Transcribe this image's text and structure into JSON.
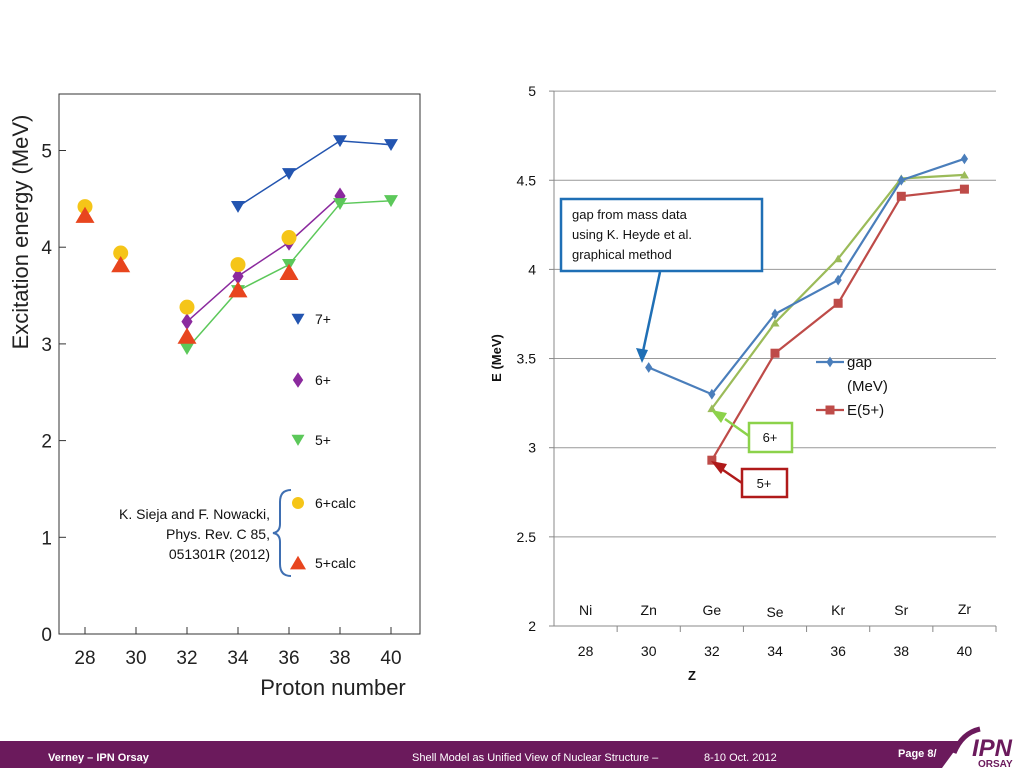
{
  "chart_data": [
    {
      "type": "scatter",
      "title": "",
      "xlabel": "Proton number",
      "ylabel": "Excitation energy (MeV)",
      "xlim": [
        27,
        41
      ],
      "ylim": [
        0,
        5.6
      ],
      "xticks": [
        "28",
        "30",
        "32",
        "34",
        "36",
        "38",
        "40"
      ],
      "yticks": [
        "0",
        "1",
        "2",
        "3",
        "4",
        "5"
      ],
      "grid": false,
      "legend": "right",
      "series": [
        {
          "name": "7+",
          "marker": "triangle-down",
          "color": "#2355b0",
          "lines": true,
          "x": [
            34,
            36,
            38,
            40
          ],
          "y": [
            4.42,
            4.76,
            5.1,
            5.06
          ]
        },
        {
          "name": "6+",
          "marker": "diamond",
          "color": "#8b2a9e",
          "lines": true,
          "x": [
            32,
            34,
            36,
            38
          ],
          "y": [
            3.23,
            3.7,
            4.05,
            4.53
          ]
        },
        {
          "name": "5+",
          "marker": "triangle-down",
          "color": "#5cc85a",
          "lines": true,
          "x": [
            32,
            34,
            36,
            38,
            40
          ],
          "y": [
            2.95,
            3.55,
            3.82,
            4.45,
            4.48
          ]
        },
        {
          "name": "6+calc",
          "marker": "circle",
          "color": "#f5c518",
          "lines": false,
          "x": [
            28,
            29.4,
            32,
            34,
            36
          ],
          "y": [
            4.42,
            3.94,
            3.38,
            3.82,
            4.1
          ]
        },
        {
          "name": "5+calc",
          "marker": "triangle-up",
          "color": "#e8451e",
          "lines": false,
          "x": [
            28,
            29.4,
            32,
            34,
            36
          ],
          "y": [
            4.33,
            3.82,
            3.08,
            3.56,
            3.74
          ]
        }
      ],
      "annotations": [
        "K. Sieja and F. Nowacki,",
        "Phys. Rev. C 85,",
        "051301R (2012)"
      ]
    },
    {
      "type": "line",
      "title": "",
      "xlabel": "Z",
      "ylabel": "E (MeV)",
      "categories": [
        "28",
        "30",
        "32",
        "34",
        "36",
        "38",
        "40"
      ],
      "element_labels": [
        "Ni",
        "Zn",
        "Ge",
        "Se",
        "Kr",
        "Sr",
        "Zr"
      ],
      "ylim": [
        2,
        5
      ],
      "yticks": [
        "2",
        "2.5",
        "3",
        "3.5",
        "4",
        "4.5",
        "5"
      ],
      "grid": true,
      "legend": "right",
      "series": [
        {
          "name": "gap (MeV)",
          "legend_lines": [
            "gap",
            "(MeV)"
          ],
          "marker": "diamond",
          "color": "#4a7ebb",
          "values": [
            null,
            3.45,
            3.3,
            3.75,
            3.94,
            4.5,
            4.62
          ]
        },
        {
          "name": "E(5+)",
          "marker": "square",
          "color": "#be4b48",
          "values": [
            null,
            null,
            2.93,
            3.53,
            3.81,
            4.41,
            4.45
          ]
        },
        {
          "name": "",
          "marker": "triangle-up",
          "color": "#9bbb59",
          "values": [
            null,
            null,
            3.22,
            3.7,
            4.06,
            4.51,
            4.53
          ]
        }
      ],
      "callouts": {
        "gap_box": [
          "gap from mass data",
          "using K. Heyde et al.",
          "graphical method"
        ],
        "six_plus": "6+",
        "five_plus": "5+"
      }
    }
  ],
  "footer": {
    "author": "Verney – IPN Orsay",
    "talk": "Shell Model as Unified View of Nuclear Structure –",
    "date": "8-10 Oct. 2012",
    "page": "Page 8/",
    "logo_text": "IPN",
    "logo_sub": "ORSAY"
  },
  "colors": {
    "footer_bg": "#6b1a5c",
    "logo_purple": "#6b1a5c",
    "callout_blue": "#1f6fb5",
    "callout_green": "#8cd24a",
    "callout_red": "#b01a1a"
  }
}
